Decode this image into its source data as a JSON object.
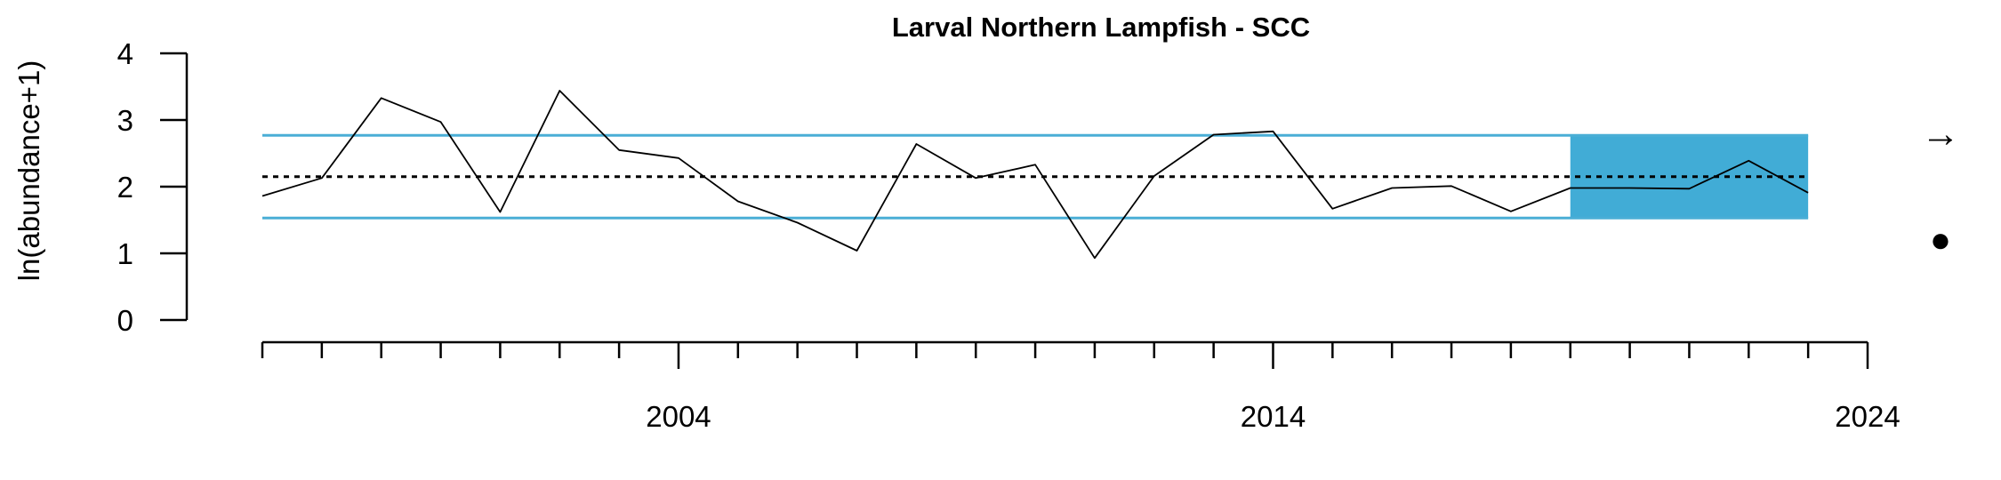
{
  "chart_data": {
    "type": "line",
    "title": "Larval Northern Lampfish - SCC",
    "ylabel": "ln(abundance+1)",
    "xlabel": "",
    "xlim": [
      1997,
      2024
    ],
    "ylim": [
      0,
      4
    ],
    "y_ticks": [
      0,
      1,
      2,
      3,
      4
    ],
    "x_tick_labels": [
      2004,
      2014,
      2024
    ],
    "x_minor_ticks": [
      1997,
      1998,
      1999,
      2000,
      2001,
      2002,
      2003,
      2004,
      2005,
      2006,
      2007,
      2008,
      2009,
      2010,
      2011,
      2012,
      2013,
      2014,
      2015,
      2016,
      2017,
      2018,
      2019,
      2020,
      2021,
      2022,
      2023,
      2024
    ],
    "series": [
      {
        "x": [
          1997,
          1998,
          1999,
          2000,
          2001,
          2002,
          2003,
          2004,
          2005,
          2006,
          2007,
          2008,
          2009,
          2010,
          2011,
          2012,
          2013,
          2014,
          2015,
          2016,
          2017,
          2018,
          2019,
          2020,
          2021,
          2022,
          2023
        ],
        "values": [
          1.86,
          2.13,
          3.33,
          2.97,
          1.62,
          3.44,
          2.55,
          2.43,
          1.78,
          1.46,
          1.04,
          2.64,
          2.13,
          2.33,
          0.93,
          2.16,
          2.78,
          2.83,
          1.67,
          1.98,
          2.01,
          1.63,
          1.98,
          1.98,
          1.97,
          2.39,
          1.91
        ],
        "color": "#000000"
      }
    ],
    "mean": 2.15,
    "sd_upper": 2.77,
    "sd_lower": 1.53,
    "shaded_region": {
      "x_start": 2019,
      "x_end": 2023,
      "y_start": 1.53,
      "y_end": 2.77
    },
    "colors": {
      "band": "#4aaed6",
      "shade": "#41acd6",
      "line": "#000000",
      "mean": "#000000"
    },
    "trend_symbol": "→",
    "mean_symbol": "●",
    "grid": false
  }
}
